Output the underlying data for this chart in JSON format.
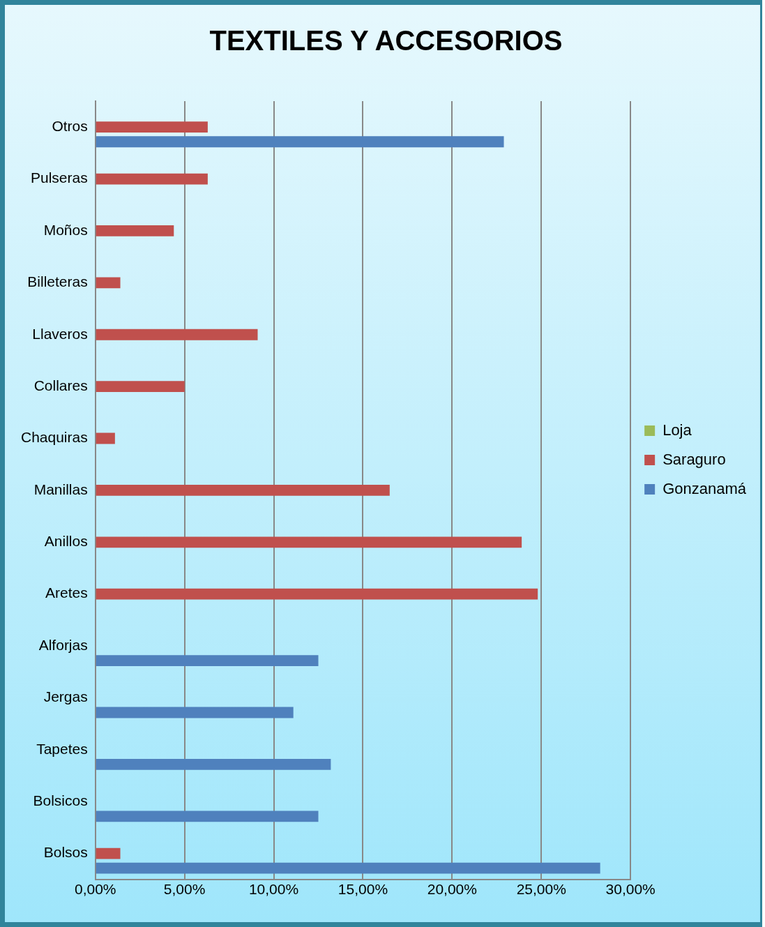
{
  "chart_data": {
    "type": "bar",
    "orientation": "horizontal",
    "title": "TEXTILES Y ACCESORIOS",
    "categories": [
      "Otros",
      "Pulseras",
      "Moños",
      "Billeteras",
      "Llaveros",
      "Collares",
      "Chaquiras",
      "Manillas",
      "Anillos",
      "Aretes",
      "Alforjas",
      "Jergas",
      "Tapetes",
      "Bolsicos",
      "Bolsos"
    ],
    "series": [
      {
        "name": "Loja",
        "color": "#9bbb59",
        "values": [
          0,
          0,
          0,
          0,
          0,
          0,
          0,
          0,
          0,
          0,
          0,
          0,
          0,
          0,
          0
        ]
      },
      {
        "name": "Saraguro",
        "color": "#c0504d",
        "values": [
          6.3,
          6.3,
          4.4,
          1.4,
          9.1,
          5.0,
          1.1,
          16.5,
          23.9,
          24.8,
          0,
          0,
          0,
          0,
          1.4
        ]
      },
      {
        "name": "Gonzanamá",
        "color": "#4f81bd",
        "values": [
          22.9,
          0,
          0,
          0,
          0,
          0,
          0,
          0,
          0,
          0,
          12.5,
          11.1,
          13.2,
          12.5,
          28.3
        ]
      }
    ],
    "xlim": [
      0,
      30
    ],
    "xticks": [
      {
        "value": 0,
        "label": "0,00%"
      },
      {
        "value": 5,
        "label": "5,00%"
      },
      {
        "value": 10,
        "label": "10,00%"
      },
      {
        "value": 15,
        "label": "15,00%"
      },
      {
        "value": 20,
        "label": "20,00%"
      },
      {
        "value": 25,
        "label": "25,00%"
      },
      {
        "value": 30,
        "label": "30,00%"
      }
    ],
    "grid": "x",
    "legend": "right"
  }
}
